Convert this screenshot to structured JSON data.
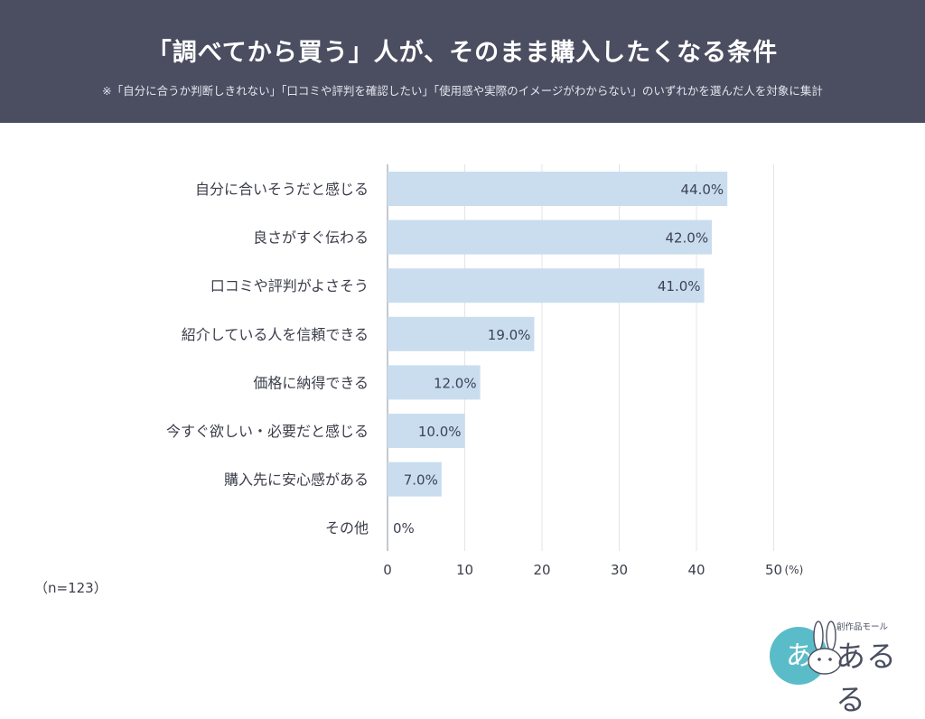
{
  "header": {
    "title": "「調べてから買う」人が、そのまま購入したくなる条件",
    "subtitle": "※「自分に合うか判断しきれない」「口コミや評判を確認したい」「使用感や実際のイメージがわからない」のいずれかを選んだ人を対象に集計"
  },
  "chart_data": {
    "type": "bar",
    "orientation": "horizontal",
    "categories": [
      "自分に合いそうだと感じる",
      "良さがすぐ伝わる",
      "口コミや評判がよさそう",
      "紹介している人を信頼できる",
      "価格に納得できる",
      "今すぐ欲しい・必要だと感じる",
      "購入先に安心感がある",
      "その他"
    ],
    "values": [
      44.0,
      42.0,
      41.0,
      19.0,
      12.0,
      10.0,
      7.0,
      0
    ],
    "value_labels": [
      "44.0%",
      "42.0%",
      "41.0%",
      "19.0%",
      "12.0%",
      "10.0%",
      "7.0%",
      "0%"
    ],
    "xlim": [
      0,
      50
    ],
    "xticks": [
      0,
      10,
      20,
      30,
      40,
      50
    ],
    "x_unit": "(%)",
    "grid": true,
    "bar_color": "#c9ddef"
  },
  "footer": {
    "sample_size": "（n=123）"
  },
  "logo": {
    "name": "あるる",
    "tagline": "創作品モール",
    "badge_text": "あ",
    "badge_color": "#5bbcc9"
  }
}
